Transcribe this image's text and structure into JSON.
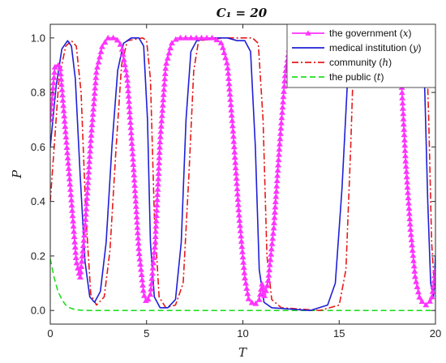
{
  "chart_data": {
    "type": "line",
    "title": "C₁ = 20",
    "xlabel": "T",
    "ylabel": "P",
    "xlim": [
      0,
      20
    ],
    "ylim": [
      -0.05,
      1.05
    ],
    "x_ticks": [
      0,
      5,
      10,
      15,
      20
    ],
    "y_ticks": [
      0,
      0.2,
      0.4,
      0.6,
      0.8,
      1.0
    ],
    "x_tick_labels": [
      "0",
      "5",
      "10",
      "15",
      "20"
    ],
    "y_tick_labels": [
      "0.0",
      "0.2",
      "0.4",
      "0.6",
      "0.8",
      "1.0"
    ],
    "grid": false,
    "legend_position": "top-right",
    "series": [
      {
        "name": "the government (x)",
        "color": "#ff33ff",
        "line_style": "solid",
        "marker": "triangle",
        "points": [
          [
            0,
            0.7
          ],
          [
            0.25,
            0.9
          ],
          [
            0.5,
            0.9
          ],
          [
            0.8,
            0.65
          ],
          [
            1.1,
            0.4
          ],
          [
            1.35,
            0.18
          ],
          [
            1.55,
            0.12
          ],
          [
            1.8,
            0.3
          ],
          [
            2.1,
            0.62
          ],
          [
            2.4,
            0.88
          ],
          [
            2.7,
            0.97
          ],
          [
            3.0,
            1.0
          ],
          [
            3.4,
            1.0
          ],
          [
            3.7,
            0.97
          ],
          [
            4.0,
            0.85
          ],
          [
            4.3,
            0.55
          ],
          [
            4.6,
            0.22
          ],
          [
            4.85,
            0.06
          ],
          [
            5.0,
            0.03
          ],
          [
            5.2,
            0.06
          ],
          [
            5.45,
            0.25
          ],
          [
            5.7,
            0.62
          ],
          [
            6.0,
            0.9
          ],
          [
            6.3,
            0.98
          ],
          [
            6.6,
            1.0
          ],
          [
            7.0,
            1.0
          ],
          [
            8.5,
            1.0
          ],
          [
            8.9,
            0.98
          ],
          [
            9.2,
            0.9
          ],
          [
            9.5,
            0.65
          ],
          [
            9.8,
            0.35
          ],
          [
            10.1,
            0.12
          ],
          [
            10.3,
            0.04
          ],
          [
            10.6,
            0.02
          ],
          [
            10.85,
            0.04
          ],
          [
            11.0,
            0.1
          ],
          [
            11.1,
            0.05
          ],
          [
            11.3,
            0.1
          ],
          [
            11.6,
            0.3
          ],
          [
            11.9,
            0.6
          ],
          [
            12.2,
            0.87
          ],
          [
            12.45,
            0.98
          ],
          [
            12.6,
            1.05
          ],
          [
            18.1,
            1.05
          ],
          [
            18.25,
            0.82
          ],
          [
            18.45,
            0.55
          ],
          [
            18.7,
            0.3
          ],
          [
            18.95,
            0.12
          ],
          [
            19.2,
            0.04
          ],
          [
            19.5,
            0.02
          ],
          [
            19.8,
            0.04
          ],
          [
            20.0,
            0.15
          ]
        ]
      },
      {
        "name": "medical institution (y)",
        "color": "#1f1fd6",
        "line_style": "solid",
        "points": [
          [
            0,
            0.6
          ],
          [
            0.3,
            0.82
          ],
          [
            0.6,
            0.96
          ],
          [
            0.9,
            0.99
          ],
          [
            1.1,
            0.97
          ],
          [
            1.3,
            0.85
          ],
          [
            1.55,
            0.5
          ],
          [
            1.8,
            0.18
          ],
          [
            2.05,
            0.05
          ],
          [
            2.3,
            0.03
          ],
          [
            2.6,
            0.07
          ],
          [
            2.9,
            0.25
          ],
          [
            3.2,
            0.6
          ],
          [
            3.5,
            0.88
          ],
          [
            3.8,
            0.98
          ],
          [
            4.2,
            1.0
          ],
          [
            4.6,
            1.0
          ],
          [
            4.85,
            0.97
          ],
          [
            5.05,
            0.7
          ],
          [
            5.2,
            0.25
          ],
          [
            5.4,
            0.05
          ],
          [
            5.7,
            0.01
          ],
          [
            6.1,
            0.01
          ],
          [
            6.5,
            0.04
          ],
          [
            6.8,
            0.25
          ],
          [
            7.05,
            0.7
          ],
          [
            7.3,
            0.95
          ],
          [
            7.6,
            0.99
          ],
          [
            8.5,
            1.0
          ],
          [
            9.2,
            1.0
          ],
          [
            9.7,
            0.99
          ],
          [
            10.1,
            0.99
          ],
          [
            10.4,
            0.95
          ],
          [
            10.65,
            0.6
          ],
          [
            10.85,
            0.15
          ],
          [
            11.1,
            0.03
          ],
          [
            11.5,
            0.01
          ],
          [
            13.5,
            0.0
          ],
          [
            14.4,
            0.02
          ],
          [
            14.8,
            0.1
          ],
          [
            15.15,
            0.45
          ],
          [
            15.4,
            0.8
          ],
          [
            15.6,
            1.05
          ],
          [
            19.3,
            1.05
          ],
          [
            19.45,
            0.8
          ],
          [
            19.6,
            0.4
          ],
          [
            19.75,
            0.1
          ],
          [
            19.9,
            0.05
          ],
          [
            20.0,
            0.2
          ]
        ]
      },
      {
        "name": "community (h)",
        "color": "#e61a1a",
        "line_style": "dashdot",
        "points": [
          [
            0,
            0.4
          ],
          [
            0.2,
            0.6
          ],
          [
            0.45,
            0.85
          ],
          [
            0.8,
            0.97
          ],
          [
            1.1,
            0.99
          ],
          [
            1.35,
            0.97
          ],
          [
            1.6,
            0.8
          ],
          [
            1.85,
            0.35
          ],
          [
            2.1,
            0.06
          ],
          [
            2.4,
            0.02
          ],
          [
            2.8,
            0.05
          ],
          [
            3.1,
            0.22
          ],
          [
            3.4,
            0.58
          ],
          [
            3.7,
            0.9
          ],
          [
            4.0,
            0.99
          ],
          [
            4.8,
            1.0
          ],
          [
            5.0,
            0.99
          ],
          [
            5.2,
            0.85
          ],
          [
            5.4,
            0.35
          ],
          [
            5.65,
            0.05
          ],
          [
            6.0,
            0.01
          ],
          [
            6.5,
            0.02
          ],
          [
            6.9,
            0.1
          ],
          [
            7.2,
            0.5
          ],
          [
            7.45,
            0.88
          ],
          [
            7.7,
            0.99
          ],
          [
            9.0,
            1.0
          ],
          [
            10.5,
            1.0
          ],
          [
            10.8,
            0.98
          ],
          [
            11.05,
            0.7
          ],
          [
            11.25,
            0.2
          ],
          [
            11.5,
            0.04
          ],
          [
            12.0,
            0.01
          ],
          [
            14.0,
            0.0
          ],
          [
            15.0,
            0.02
          ],
          [
            15.35,
            0.15
          ],
          [
            15.6,
            0.6
          ],
          [
            15.8,
            1.05
          ],
          [
            19.5,
            1.05
          ],
          [
            19.65,
            0.7
          ],
          [
            19.8,
            0.25
          ],
          [
            19.95,
            0.08
          ],
          [
            20.0,
            0.1
          ]
        ]
      },
      {
        "name": "the public (t)",
        "color": "#22dd22",
        "line_style": "dashed",
        "points": [
          [
            0,
            0.19
          ],
          [
            0.2,
            0.12
          ],
          [
            0.4,
            0.07
          ],
          [
            0.6,
            0.04
          ],
          [
            0.8,
            0.02
          ],
          [
            1.0,
            0.01
          ],
          [
            1.3,
            0.003
          ],
          [
            1.6,
            0.001
          ],
          [
            2.0,
            0.0
          ],
          [
            20.0,
            0.0
          ]
        ]
      }
    ]
  }
}
